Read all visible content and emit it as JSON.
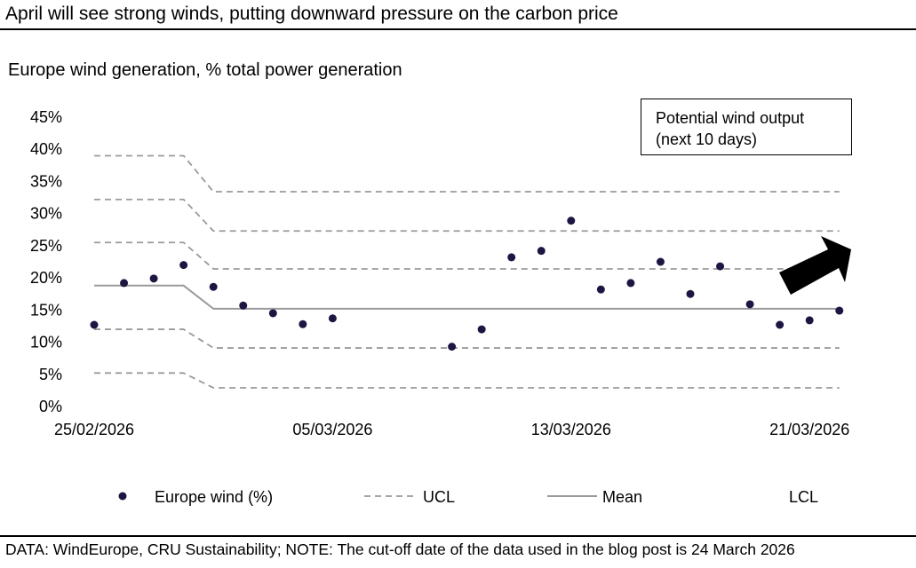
{
  "title": "April will see strong winds, putting downward pressure on the carbon price",
  "footer": "DATA: WindEurope, CRU Sustainability; NOTE: The cut-off date of the data used in the blog post is 24 March 2026",
  "callout": {
    "line1": "Potential wind output",
    "line2": "(next 10 days)",
    "icon": "up-right-arrow-icon"
  },
  "chart_data": {
    "type": "scatter",
    "title": "Europe wind generation, % total power generation",
    "ylim": [
      0,
      45
    ],
    "yticks": [
      "0%",
      "5%",
      "10%",
      "15%",
      "20%",
      "25%",
      "30%",
      "35%",
      "40%",
      "45%"
    ],
    "xticks": [
      "25/02/2026",
      "05/03/2026",
      "13/03/2026",
      "21/03/2026"
    ],
    "grid": false,
    "legend_position": "bottom",
    "series": [
      {
        "name": "Europe wind (%)",
        "color": "#1c1642",
        "x": [
          "25/02/2026",
          "26/02/2026",
          "27/02/2026",
          "28/02/2026",
          "01/03/2026",
          "02/03/2026",
          "03/03/2026",
          "04/03/2026",
          "05/03/2026",
          "09/03/2026",
          "10/03/2026",
          "11/03/2026",
          "12/03/2026",
          "13/03/2026",
          "14/03/2026",
          "15/03/2026",
          "16/03/2026",
          "17/03/2026",
          "18/03/2026",
          "19/03/2026",
          "20/03/2026",
          "21/03/2026",
          "22/03/2026"
        ],
        "values": [
          12.7,
          19.2,
          19.9,
          22.0,
          18.6,
          15.7,
          14.5,
          12.8,
          13.7,
          9.3,
          12.0,
          23.2,
          24.2,
          28.9,
          18.2,
          19.2,
          22.5,
          17.5,
          21.8,
          15.9,
          12.7,
          13.4,
          14.9
        ]
      }
    ],
    "control_lines": {
      "mean": {
        "name": "Mean",
        "period1": 18.8,
        "period2": 15.2
      },
      "ucl": {
        "name": "UCL",
        "period1": [
          39.0,
          32.2,
          25.5
        ],
        "period2": [
          33.4,
          27.3,
          21.4
        ]
      },
      "lcl": {
        "name": "LCL",
        "period1": [
          12.0,
          5.2
        ],
        "period2": [
          9.1,
          2.9
        ]
      },
      "period1_end": "28/02/2026",
      "period2_start": "01/03/2026",
      "end": "22/03/2026"
    }
  }
}
